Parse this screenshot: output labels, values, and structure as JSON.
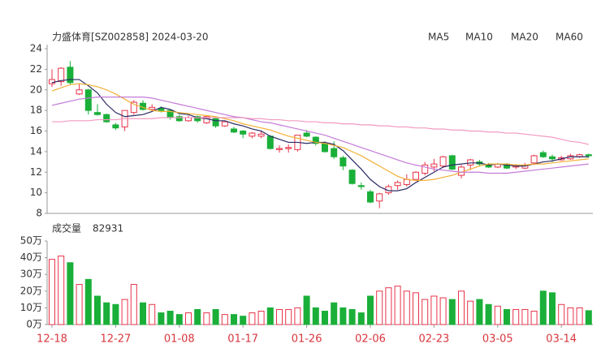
{
  "chart_data": [
    {
      "type": "candlestick",
      "title": "力盛体育[SZ002858] 2024-03-20",
      "open": [
        20.6,
        20.8,
        22.2,
        19.6,
        20.0,
        17.8,
        17.6,
        16.6,
        16.4,
        17.8,
        18.7,
        18.1,
        18.2,
        18.0,
        17.4,
        17.0,
        17.4,
        16.8,
        17.2,
        16.5,
        16.2,
        16.0,
        15.5,
        15.5,
        15.5,
        14.2,
        14.3,
        14.2,
        15.8,
        15.4,
        14.8,
        14.3,
        13.4,
        12.2,
        10.7,
        10.1,
        9.2,
        10.0,
        10.7,
        10.8,
        11.3,
        11.9,
        12.5,
        12.6,
        13.6,
        11.7,
        12.7,
        13.0,
        12.7,
        12.5,
        12.8,
        12.5,
        12.4,
        12.9,
        13.9,
        13.5,
        13.2,
        13.3,
        13.5,
        13.7
      ],
      "high": [
        22.0,
        22.2,
        22.8,
        20.6,
        20.1,
        18.6,
        17.7,
        16.8,
        18.0,
        19.0,
        19.0,
        18.6,
        18.4,
        18.1,
        17.6,
        17.5,
        17.5,
        17.5,
        17.3,
        17.0,
        16.4,
        16.1,
        15.9,
        16.0,
        15.6,
        14.6,
        14.7,
        15.6,
        16.1,
        15.5,
        15.0,
        15.0,
        13.6,
        12.3,
        11.0,
        10.3,
        10.0,
        10.8,
        11.2,
        11.8,
        12.1,
        13.0,
        13.3,
        13.6,
        13.7,
        12.7,
        13.3,
        13.2,
        12.9,
        12.9,
        12.9,
        12.8,
        12.9,
        13.7,
        14.1,
        13.7,
        13.6,
        13.8,
        13.8,
        13.8
      ],
      "low": [
        20.3,
        20.4,
        20.5,
        19.5,
        17.6,
        17.5,
        16.8,
        16.1,
        16.0,
        17.6,
        18.0,
        18.0,
        17.8,
        17.1,
        16.9,
        16.9,
        16.8,
        16.7,
        16.3,
        16.4,
        15.8,
        15.3,
        15.3,
        15.3,
        14.2,
        13.9,
        13.9,
        14.0,
        15.4,
        14.6,
        13.9,
        13.3,
        12.2,
        10.8,
        10.3,
        9.0,
        8.5,
        9.8,
        10.3,
        10.6,
        11.2,
        11.7,
        12.1,
        12.4,
        12.2,
        11.4,
        12.2,
        12.6,
        12.4,
        12.4,
        12.3,
        12.3,
        12.3,
        12.7,
        13.4,
        13.0,
        13.1,
        13.2,
        13.4,
        13.4
      ],
      "close": [
        21.0,
        22.1,
        20.7,
        20.0,
        18.0,
        17.6,
        16.9,
        16.3,
        18.0,
        18.8,
        18.1,
        18.3,
        18.0,
        17.3,
        17.0,
        17.3,
        17.0,
        17.4,
        16.5,
        16.9,
        15.9,
        15.7,
        15.8,
        15.7,
        14.3,
        14.3,
        14.4,
        15.6,
        15.5,
        14.8,
        14.0,
        13.5,
        12.6,
        10.9,
        10.6,
        9.1,
        9.9,
        10.6,
        11.0,
        11.3,
        12.0,
        12.7,
        12.8,
        13.5,
        12.3,
        12.5,
        13.2,
        12.8,
        12.5,
        12.8,
        12.4,
        12.6,
        12.7,
        13.6,
        13.5,
        13.3,
        13.4,
        13.6,
        13.7,
        13.6
      ],
      "up_color": "#e8334a",
      "down_color": "#1aaf39",
      "series": [
        {
          "name": "MA5",
          "color": "#2a2a66",
          "values": [
            20.7,
            20.9,
            21.0,
            21.0,
            20.4,
            19.7,
            18.6,
            17.8,
            17.4,
            17.5,
            17.6,
            17.9,
            18.3,
            18.1,
            17.7,
            17.6,
            17.3,
            17.2,
            17.0,
            17.0,
            16.7,
            16.5,
            16.2,
            16.0,
            15.5,
            15.2,
            14.9,
            14.9,
            14.8,
            14.9,
            14.9,
            14.7,
            14.1,
            13.2,
            12.3,
            11.3,
            10.6,
            10.2,
            10.2,
            10.4,
            11.0,
            11.5,
            12.0,
            12.5,
            12.7,
            12.8,
            12.9,
            12.9,
            12.7,
            12.8,
            12.7,
            12.6,
            12.6,
            12.8,
            13.0,
            13.1,
            13.3,
            13.5,
            13.5,
            13.5
          ]
        },
        {
          "name": "MA10",
          "color": "#f2b035",
          "values": [
            19.9,
            20.2,
            20.5,
            20.6,
            20.5,
            20.3,
            20.0,
            19.6,
            19.1,
            18.6,
            18.3,
            18.0,
            17.9,
            17.9,
            17.8,
            17.7,
            17.6,
            17.5,
            17.4,
            17.2,
            17.0,
            16.7,
            16.5,
            16.3,
            16.1,
            15.8,
            15.5,
            15.3,
            15.1,
            14.9,
            14.8,
            14.6,
            14.4,
            14.0,
            13.6,
            13.1,
            12.6,
            12.1,
            11.6,
            11.3,
            11.2,
            11.2,
            11.3,
            11.5,
            11.7,
            12.0,
            12.3,
            12.6,
            12.8,
            12.8,
            12.8,
            12.7,
            12.7,
            12.8,
            12.8,
            12.9,
            13.0,
            13.1,
            13.2,
            13.3
          ]
        },
        {
          "name": "MA20",
          "color": "#c47ad8",
          "values": [
            18.5,
            18.7,
            18.9,
            19.1,
            19.2,
            19.3,
            19.3,
            19.3,
            19.3,
            19.3,
            19.3,
            19.2,
            19.0,
            18.8,
            18.6,
            18.4,
            18.2,
            18.0,
            17.8,
            17.6,
            17.4,
            17.3,
            17.1,
            16.9,
            16.8,
            16.6,
            16.4,
            16.2,
            16.0,
            15.8,
            15.6,
            15.3,
            15.0,
            14.7,
            14.4,
            14.1,
            13.8,
            13.5,
            13.2,
            12.9,
            12.7,
            12.5,
            12.3,
            12.2,
            12.1,
            12.0,
            12.0,
            12.0,
            11.9,
            11.9,
            11.9,
            12.0,
            12.1,
            12.2,
            12.3,
            12.4,
            12.5,
            12.6,
            12.7,
            12.8
          ]
        },
        {
          "name": "MA60",
          "color": "#f29ac0",
          "values": [
            16.9,
            16.9,
            17.0,
            17.0,
            17.0,
            17.1,
            17.1,
            17.1,
            17.2,
            17.2,
            17.2,
            17.2,
            17.3,
            17.3,
            17.3,
            17.3,
            17.3,
            17.3,
            17.3,
            17.3,
            17.3,
            17.3,
            17.2,
            17.2,
            17.1,
            17.1,
            17.0,
            17.0,
            16.9,
            16.9,
            16.8,
            16.8,
            16.7,
            16.7,
            16.6,
            16.6,
            16.5,
            16.5,
            16.4,
            16.4,
            16.3,
            16.3,
            16.2,
            16.2,
            16.1,
            16.1,
            16.0,
            16.0,
            15.9,
            15.9,
            15.8,
            15.8,
            15.7,
            15.6,
            15.5,
            15.4,
            15.2,
            15.0,
            14.9,
            14.7
          ]
        }
      ],
      "ylim": [
        8,
        24
      ],
      "yticks": [
        8,
        10,
        12,
        14,
        16,
        18,
        20,
        22,
        24
      ]
    },
    {
      "type": "volume",
      "title": "成交量",
      "categories": [
        "12-18",
        null,
        null,
        null,
        null,
        null,
        null,
        "12-27",
        null,
        null,
        null,
        null,
        null,
        null,
        "01-08",
        null,
        null,
        null,
        null,
        null,
        null,
        "01-17",
        null,
        null,
        null,
        null,
        null,
        null,
        "01-26",
        null,
        null,
        null,
        null,
        null,
        null,
        "02-06",
        null,
        null,
        null,
        null,
        null,
        null,
        "02-23",
        null,
        null,
        null,
        null,
        null,
        null,
        "03-05",
        null,
        null,
        null,
        null,
        null,
        null,
        "03-14",
        null,
        null,
        null
      ],
      "values": [
        390000,
        410000,
        370000,
        240000,
        270000,
        170000,
        130000,
        120000,
        150000,
        240000,
        130000,
        120000,
        70000,
        80000,
        60000,
        70000,
        90000,
        70000,
        90000,
        60000,
        60000,
        50000,
        70000,
        80000,
        100000,
        90000,
        90000,
        100000,
        170000,
        100000,
        80000,
        130000,
        100000,
        90000,
        70000,
        170000,
        200000,
        220000,
        230000,
        200000,
        190000,
        150000,
        170000,
        160000,
        150000,
        200000,
        140000,
        150000,
        120000,
        110000,
        90000,
        90000,
        90000,
        80000,
        200000,
        190000,
        120000,
        100000,
        100000,
        82931
      ],
      "ylim": [
        0,
        500000
      ],
      "yticks": [
        {
          "value": 0,
          "label": "0万"
        },
        {
          "value": 100000,
          "label": "10万"
        },
        {
          "value": 200000,
          "label": "20万"
        },
        {
          "value": 300000,
          "label": "30万"
        },
        {
          "value": 400000,
          "label": "40万"
        },
        {
          "value": 500000,
          "label": "50万"
        }
      ]
    }
  ]
}
